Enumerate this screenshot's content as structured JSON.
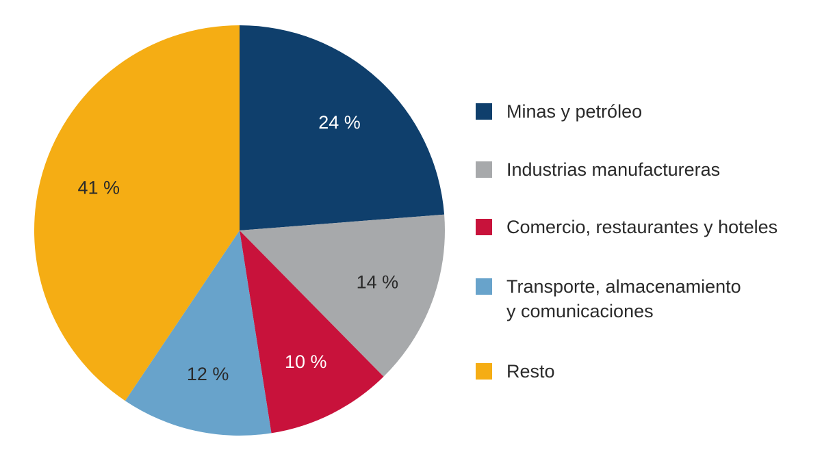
{
  "chart_data": {
    "type": "pie",
    "title": "",
    "slices": [
      {
        "label": "Minas y petróleo",
        "value": 24,
        "value_label": "24 %",
        "color": "#0f3f6c",
        "label_color": "#ffffff"
      },
      {
        "label": "Industrias manufactureras",
        "value": 14,
        "value_label": "14 %",
        "color": "#a7a9ab",
        "label_color": "#2a2a2a"
      },
      {
        "label": "Comercio, restaurantes y hoteles",
        "value": 10,
        "value_label": "10 %",
        "color": "#c8123b",
        "label_color": "#ffffff"
      },
      {
        "label": "Transporte, almacenamiento y comunicaciones",
        "label_lines": [
          "Transporte, almacenamiento",
          "y comunicaciones"
        ],
        "value": 12,
        "value_label": "12 %",
        "color": "#68a3cb",
        "label_color": "#2a2a2a"
      },
      {
        "label": "Resto",
        "value": 41,
        "value_label": "41 %",
        "color": "#f5ad14",
        "label_color": "#2a2a2a"
      }
    ],
    "start_angle": "12 o'clock",
    "direction": "clockwise",
    "legend_position": "right"
  }
}
